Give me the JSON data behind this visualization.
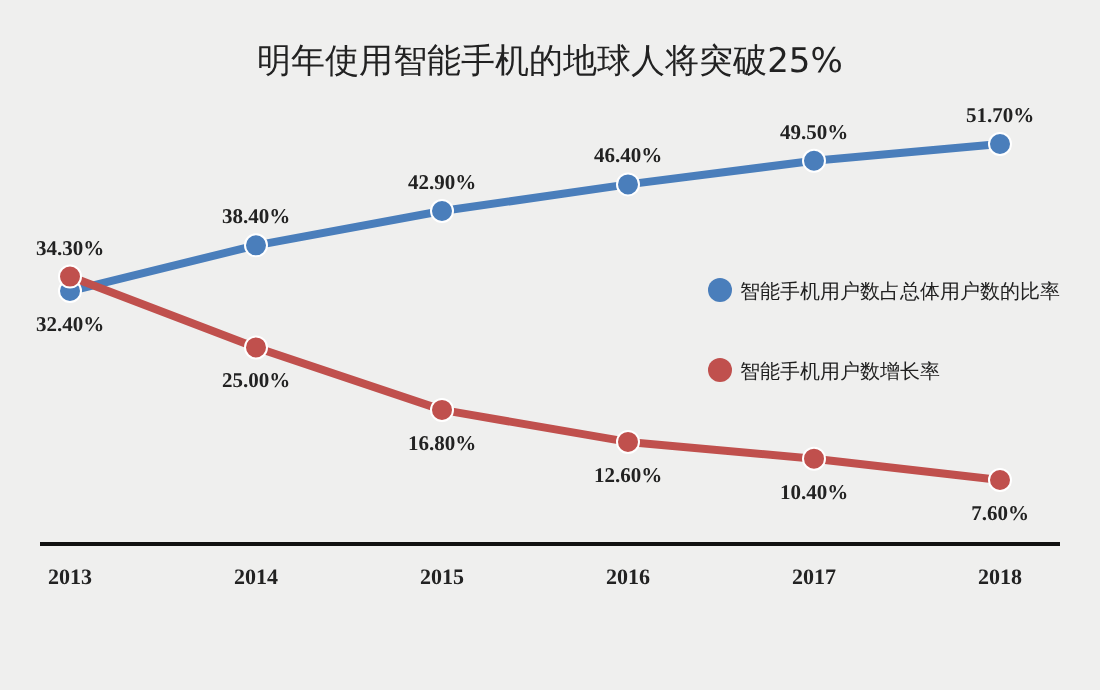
{
  "chart_data": {
    "type": "line",
    "title": "明年使用智能手机的地球人将突破25%",
    "categories": [
      "2013",
      "2014",
      "2015",
      "2016",
      "2017",
      "2018"
    ],
    "series": [
      {
        "name": "智能手机用户数占总体用户数的比率",
        "color": "#4a7ebb",
        "values": [
          32.4,
          38.4,
          42.9,
          46.4,
          49.5,
          51.7
        ],
        "value_labels": [
          "32.40%",
          "38.40%",
          "42.90%",
          "46.40%",
          "49.50%",
          "51.70%"
        ]
      },
      {
        "name": "智能手机用户数增长率",
        "color": "#c0504d",
        "values": [
          34.3,
          25.0,
          16.8,
          12.6,
          10.4,
          7.6
        ],
        "value_labels": [
          "34.30%",
          "25.00%",
          "16.80%",
          "12.60%",
          "10.40%",
          "7.60%"
        ]
      }
    ],
    "marker": "circle",
    "legend": "right"
  }
}
